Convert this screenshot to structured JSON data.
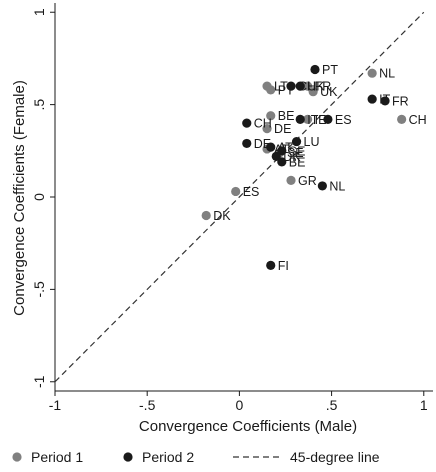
{
  "chart_data": {
    "type": "scatter",
    "xlabel": "Convergence Coefficients (Male)",
    "ylabel": "Convergence Coefficients (Female)",
    "xlim": [
      -1,
      1.05
    ],
    "ylim": [
      -1.05,
      1.05
    ],
    "xticks": [
      {
        "value": -1,
        "label": "-1"
      },
      {
        "value": -0.5,
        "label": "-.5"
      },
      {
        "value": 0,
        "label": "0"
      },
      {
        "value": 0.5,
        "label": ".5"
      },
      {
        "value": 1,
        "label": "1"
      }
    ],
    "yticks": [
      {
        "value": -1,
        "label": "-1"
      },
      {
        "value": -0.5,
        "label": "-.5"
      },
      {
        "value": 0,
        "label": "0"
      },
      {
        "value": 0.5,
        "label": ".5"
      },
      {
        "value": 1,
        "label": "1"
      }
    ],
    "grid": false,
    "legend_position": "bottom",
    "colors": {
      "Period 1": "#808080",
      "Period 2": "#1a1a1a",
      "line": "#333333"
    },
    "series": [
      {
        "name": "Period 1",
        "points": [
          {
            "label": "NL",
            "x": 0.72,
            "y": 0.67
          },
          {
            "label": "CH",
            "x": 0.88,
            "y": 0.42
          },
          {
            "label": "LT",
            "x": 0.15,
            "y": 0.6
          },
          {
            "label": "FR",
            "x": 0.37,
            "y": 0.6
          },
          {
            "label": "PT",
            "x": 0.17,
            "y": 0.58
          },
          {
            "label": "UK",
            "x": 0.4,
            "y": 0.57
          },
          {
            "label": "BE",
            "x": 0.17,
            "y": 0.44
          },
          {
            "label": "IE",
            "x": 0.37,
            "y": 0.42
          },
          {
            "label": "DE",
            "x": 0.15,
            "y": 0.37
          },
          {
            "label": "AT",
            "x": 0.15,
            "y": 0.26
          },
          {
            "label": "SE",
            "x": 0.22,
            "y": 0.24
          },
          {
            "label": "GR",
            "x": 0.28,
            "y": 0.09
          },
          {
            "label": "ES",
            "x": -0.02,
            "y": 0.03
          },
          {
            "label": "DK",
            "x": -0.18,
            "y": -0.1
          }
        ]
      },
      {
        "name": "Period 2",
        "points": [
          {
            "label": "PT",
            "x": 0.41,
            "y": 0.69
          },
          {
            "label": "CH",
            "x": 0.28,
            "y": 0.6
          },
          {
            "label": "UK",
            "x": 0.33,
            "y": 0.6
          },
          {
            "label": "IT",
            "x": 0.72,
            "y": 0.53
          },
          {
            "label": "FR",
            "x": 0.79,
            "y": 0.52
          },
          {
            "label": "CH",
            "x": 0.04,
            "y": 0.4
          },
          {
            "label": "IT",
            "x": 0.33,
            "y": 0.42
          },
          {
            "label": "ES",
            "x": 0.48,
            "y": 0.42
          },
          {
            "label": "LU",
            "x": 0.31,
            "y": 0.3
          },
          {
            "label": "DE",
            "x": 0.04,
            "y": 0.29
          },
          {
            "label": "AT",
            "x": 0.17,
            "y": 0.27
          },
          {
            "label": "SE",
            "x": 0.23,
            "y": 0.25
          },
          {
            "label": "DK",
            "x": 0.2,
            "y": 0.22
          },
          {
            "label": "BE",
            "x": 0.23,
            "y": 0.19
          },
          {
            "label": "NL",
            "x": 0.45,
            "y": 0.06
          },
          {
            "label": "FI",
            "x": 0.17,
            "y": -0.37
          }
        ]
      }
    ],
    "reference_line": {
      "name": "45-degree line",
      "from": [
        -1,
        -1
      ],
      "to": [
        1,
        1
      ],
      "style": "dashed"
    },
    "legend": [
      {
        "marker": "dot",
        "label": "Period 1",
        "color": "#808080"
      },
      {
        "marker": "dot",
        "label": "Period 2",
        "color": "#1a1a1a"
      },
      {
        "marker": "dash",
        "label": "45-degree line",
        "color": "#333333"
      }
    ]
  }
}
